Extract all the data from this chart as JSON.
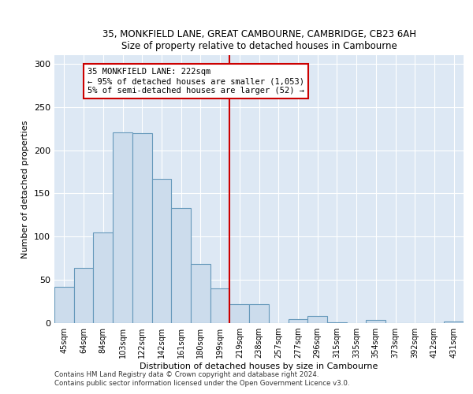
{
  "title1": "35, MONKFIELD LANE, GREAT CAMBOURNE, CAMBRIDGE, CB23 6AH",
  "title2": "Size of property relative to detached houses in Cambourne",
  "xlabel": "Distribution of detached houses by size in Cambourne",
  "ylabel": "Number of detached properties",
  "categories": [
    "45sqm",
    "64sqm",
    "84sqm",
    "103sqm",
    "122sqm",
    "142sqm",
    "161sqm",
    "180sqm",
    "199sqm",
    "219sqm",
    "238sqm",
    "257sqm",
    "277sqm",
    "296sqm",
    "315sqm",
    "335sqm",
    "354sqm",
    "373sqm",
    "392sqm",
    "412sqm",
    "431sqm"
  ],
  "values": [
    42,
    64,
    105,
    221,
    220,
    167,
    133,
    68,
    40,
    22,
    22,
    0,
    5,
    8,
    1,
    0,
    4,
    0,
    0,
    0,
    2
  ],
  "bar_color": "#ccdcec",
  "bar_edge_color": "#6699bb",
  "vline_color": "#cc0000",
  "annotation_text": "35 MONKFIELD LANE: 222sqm\n← 95% of detached houses are smaller (1,053)\n5% of semi-detached houses are larger (52) →",
  "annotation_box_color": "#ffffff",
  "annotation_box_edge": "#cc0000",
  "ylim": [
    0,
    310
  ],
  "yticks": [
    0,
    50,
    100,
    150,
    200,
    250,
    300
  ],
  "footer1": "Contains HM Land Registry data © Crown copyright and database right 2024.",
  "footer2": "Contains public sector information licensed under the Open Government Licence v3.0.",
  "bg_color": "#dde8f4",
  "fig_bg": "#ffffff"
}
